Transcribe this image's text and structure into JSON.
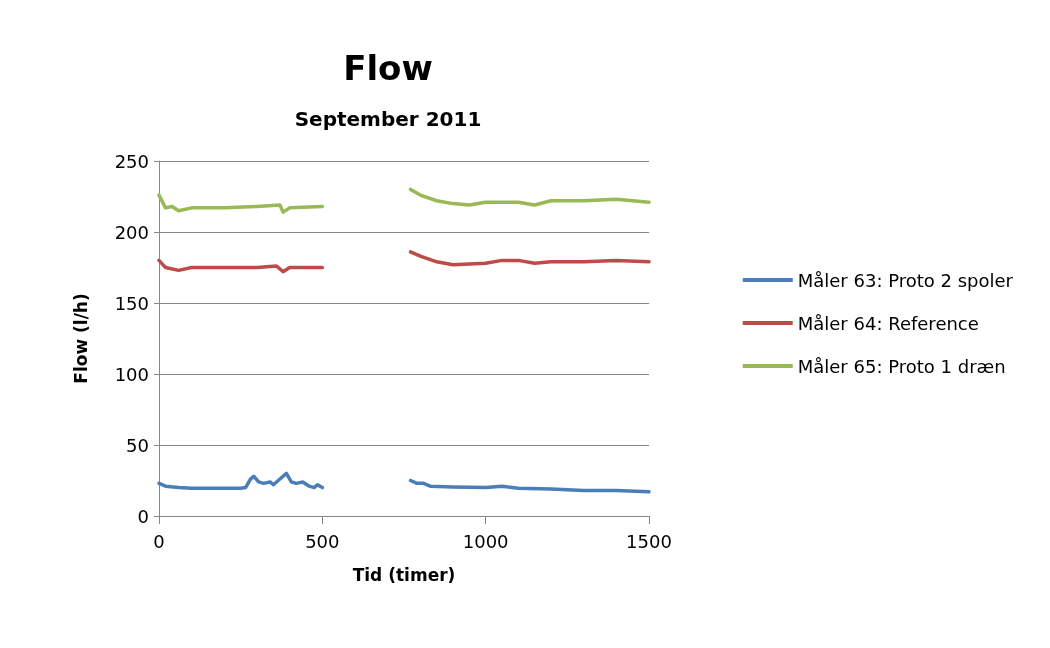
{
  "chart_data": {
    "type": "line",
    "title": "Flow",
    "subtitle": "September 2011",
    "xlabel": "Tid (timer)",
    "ylabel": "Flow (l/h)",
    "xlim": [
      0,
      1500
    ],
    "xticks": [
      0,
      500,
      1000,
      1500
    ],
    "ylim": [
      0,
      250
    ],
    "yticks": [
      0,
      50,
      100,
      150,
      200,
      250
    ],
    "grid": "y",
    "legend": "right",
    "marker": "none",
    "line_style": "solid",
    "series": [
      {
        "name": "Måler 63: Proto 2 spoler",
        "color": "#4a7ebb",
        "x": [
          0,
          20,
          60,
          100,
          200,
          250,
          265,
          280,
          290,
          305,
          320,
          340,
          350,
          365,
          380,
          390,
          405,
          420,
          440,
          460,
          475,
          485,
          500,
          635,
          770,
          790,
          810,
          830,
          900,
          1000,
          1050,
          1100,
          1200,
          1300,
          1400,
          1500
        ],
        "values": [
          23,
          21,
          20,
          19.5,
          19.5,
          19.5,
          20,
          26,
          28,
          24,
          23,
          24,
          22,
          25,
          28,
          30,
          24,
          23,
          24,
          21,
          20,
          22,
          20,
          null,
          25,
          23,
          23,
          21,
          20.5,
          20,
          21,
          19.5,
          19,
          18,
          18,
          17
        ]
      },
      {
        "name": "Måler 64: Reference",
        "color": "#be4b48",
        "x": [
          0,
          20,
          60,
          100,
          200,
          300,
          360,
          380,
          400,
          500,
          635,
          770,
          800,
          850,
          900,
          1000,
          1050,
          1100,
          1150,
          1200,
          1300,
          1400,
          1500
        ],
        "values": [
          180,
          175,
          173,
          175,
          175,
          175,
          176,
          172,
          175,
          175,
          null,
          186,
          183,
          179,
          177,
          178,
          180,
          180,
          178,
          179,
          179,
          180,
          179
        ]
      },
      {
        "name": "Måler 65: Proto 1 dræn",
        "color": "#98b954",
        "x": [
          0,
          20,
          40,
          60,
          100,
          200,
          300,
          370,
          380,
          400,
          500,
          635,
          770,
          800,
          850,
          900,
          950,
          1000,
          1100,
          1150,
          1200,
          1300,
          1400,
          1500
        ],
        "values": [
          226,
          217,
          218,
          215,
          217,
          217,
          218,
          219,
          214,
          217,
          218,
          null,
          230,
          226,
          222,
          220,
          219,
          221,
          221,
          219,
          222,
          222,
          223,
          221
        ]
      }
    ]
  }
}
